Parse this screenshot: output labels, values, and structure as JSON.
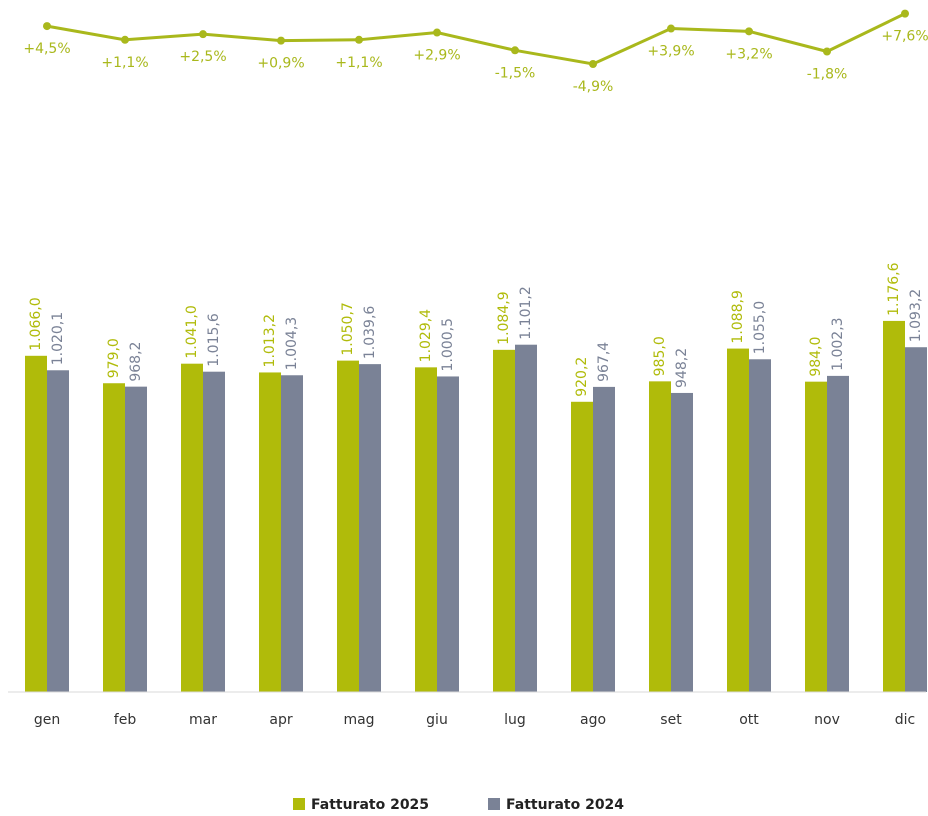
{
  "chart_data": [
    {
      "type": "line",
      "color": "#a9b81c",
      "values": [
        4.5,
        1.1,
        2.5,
        0.9,
        1.1,
        2.9,
        -1.5,
        -4.9,
        3.9,
        3.2,
        -1.8,
        7.6
      ],
      "value_labels": [
        "+4,5%",
        "+1,1%",
        "+2,5%",
        "+0,9%",
        "+1,1%",
        "+2,9%",
        "-1,5%",
        "-4,9%",
        "+3,9%",
        "+3,2%",
        "-1,8%",
        "+7,6%"
      ],
      "ylim": [
        -5,
        8
      ]
    },
    {
      "type": "bar",
      "categories": [
        "gen",
        "feb",
        "mar",
        "apr",
        "mag",
        "giu",
        "lug",
        "ago",
        "set",
        "ott",
        "nov",
        "dic"
      ],
      "series": [
        {
          "name": "Fatturato 2025",
          "color": "#b0bb0a",
          "values": [
            1066.0,
            979.0,
            1041.0,
            1013.2,
            1050.7,
            1029.4,
            1084.9,
            920.2,
            985.0,
            1088.9,
            984.0,
            1176.6
          ],
          "value_labels": [
            "1.066,0",
            "979,0",
            "1.041,0",
            "1.013,2",
            "1.050,7",
            "1.029,4",
            "1.084,9",
            "920,2",
            "985,0",
            "1.088,9",
            "984,0",
            "1.176,6"
          ]
        },
        {
          "name": "Fatturato 2024",
          "color": "#7a8296",
          "values": [
            1020.1,
            968.2,
            1015.6,
            1004.3,
            1039.6,
            1000.5,
            1101.2,
            967.4,
            948.2,
            1055.0,
            1002.3,
            1093.2
          ],
          "value_labels": [
            "1.020,1",
            "968,2",
            "1.015,6",
            "1.004,3",
            "1.039,6",
            "1.000,5",
            "1.101,2",
            "967,4",
            "948,2",
            "1.055,0",
            "1.002,3",
            "1.093,2"
          ]
        }
      ],
      "ylim": [
        0,
        1300
      ],
      "legend": "bottom"
    }
  ]
}
